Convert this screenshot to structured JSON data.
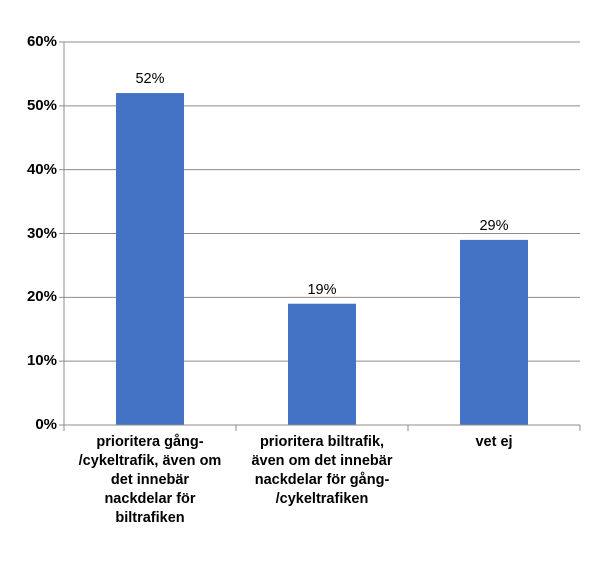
{
  "chart_data": {
    "type": "bar",
    "categories": [
      "prioritera gång-\n/cykeltrafik, även om\ndet innebär\nnackdelar för\nbiltrafiken",
      "prioritera biltrafik,\näven om det innebär\nnackdelar för gång-\n/cykeltrafiken",
      "vet ej"
    ],
    "values": [
      52,
      19,
      29
    ],
    "data_labels": [
      "52%",
      "19%",
      "29%"
    ],
    "y_ticks": [
      "0%",
      "10%",
      "20%",
      "30%",
      "40%",
      "50%",
      "60%"
    ],
    "ylim": [
      0,
      60
    ],
    "grid": true,
    "bar_color": "#4472C4",
    "gridline_color": "#8C8C8C"
  }
}
